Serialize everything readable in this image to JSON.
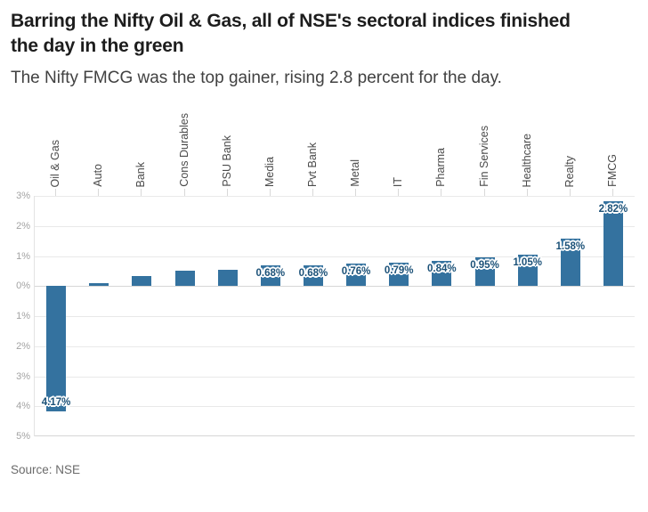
{
  "header": {
    "title": "Barring the Nifty Oil & Gas, all of NSE's sectoral indices finished the day in the green",
    "subtitle": "The Nifty FMCG was the top gainer, rising 2.8 percent for the day."
  },
  "chart_data": {
    "type": "bar",
    "title": "Barring the Nifty Oil & Gas, all of NSE's sectoral indices finished the day in the green",
    "subtitle": "The Nifty FMCG was the top gainer, rising 2.8 percent for the day.",
    "source": "Source: NSE",
    "categories": [
      "Oil & Gas",
      "Auto",
      "Bank",
      "Cons Durables",
      "PSU Bank",
      "Media",
      "Pvt Bank",
      "Metal",
      "IT",
      "Pharma",
      "Fin Services",
      "Healthcare",
      "Realty",
      "FMCG"
    ],
    "values": [
      -4.17,
      0.1,
      0.33,
      0.5,
      0.55,
      0.68,
      0.68,
      0.76,
      0.79,
      0.84,
      0.95,
      1.05,
      1.58,
      2.82
    ],
    "bar_labels": [
      "4.17%",
      "",
      "",
      "",
      "",
      "0.68%",
      "0.68%",
      "0.76%",
      "0.79%",
      "0.84%",
      "0.95%",
      "1.05%",
      "1.58%",
      "2.82%"
    ],
    "ylabel": "",
    "xlabel": "",
    "ylim": [
      -5,
      3
    ],
    "y_ticks": [
      {
        "value": 3,
        "label": "3%"
      },
      {
        "value": 2,
        "label": "2%"
      },
      {
        "value": 1,
        "label": "1%"
      },
      {
        "value": 0,
        "label": "0%"
      },
      {
        "value": -1,
        "label": "1%"
      },
      {
        "value": -2,
        "label": "2%"
      },
      {
        "value": -3,
        "label": "3%"
      },
      {
        "value": -4,
        "label": "4%"
      },
      {
        "value": -5,
        "label": "5%"
      }
    ],
    "grid": true,
    "legend": "none",
    "bar_color": "#34729f",
    "value_label_color": "#1b5178"
  },
  "footer": {
    "source": "Source: NSE"
  }
}
